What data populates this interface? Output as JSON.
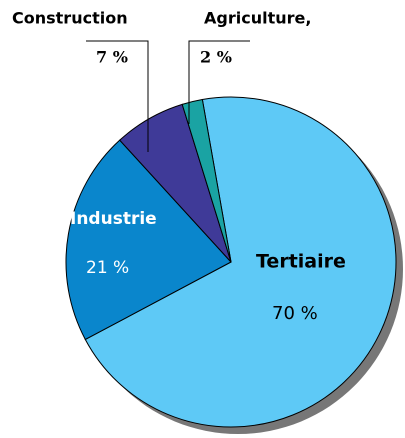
{
  "chart_data": {
    "type": "pie",
    "categories": [
      "Tertiaire",
      "Industrie",
      "Construction",
      "Agriculture,"
    ],
    "values": [
      70,
      21,
      7,
      2
    ],
    "value_labels": [
      "70 %",
      "21 %",
      "7 %",
      "2 %"
    ],
    "colors": [
      "#5ec9f6",
      "#0a86cc",
      "#3f3a98",
      "#1aa3a3"
    ]
  }
}
